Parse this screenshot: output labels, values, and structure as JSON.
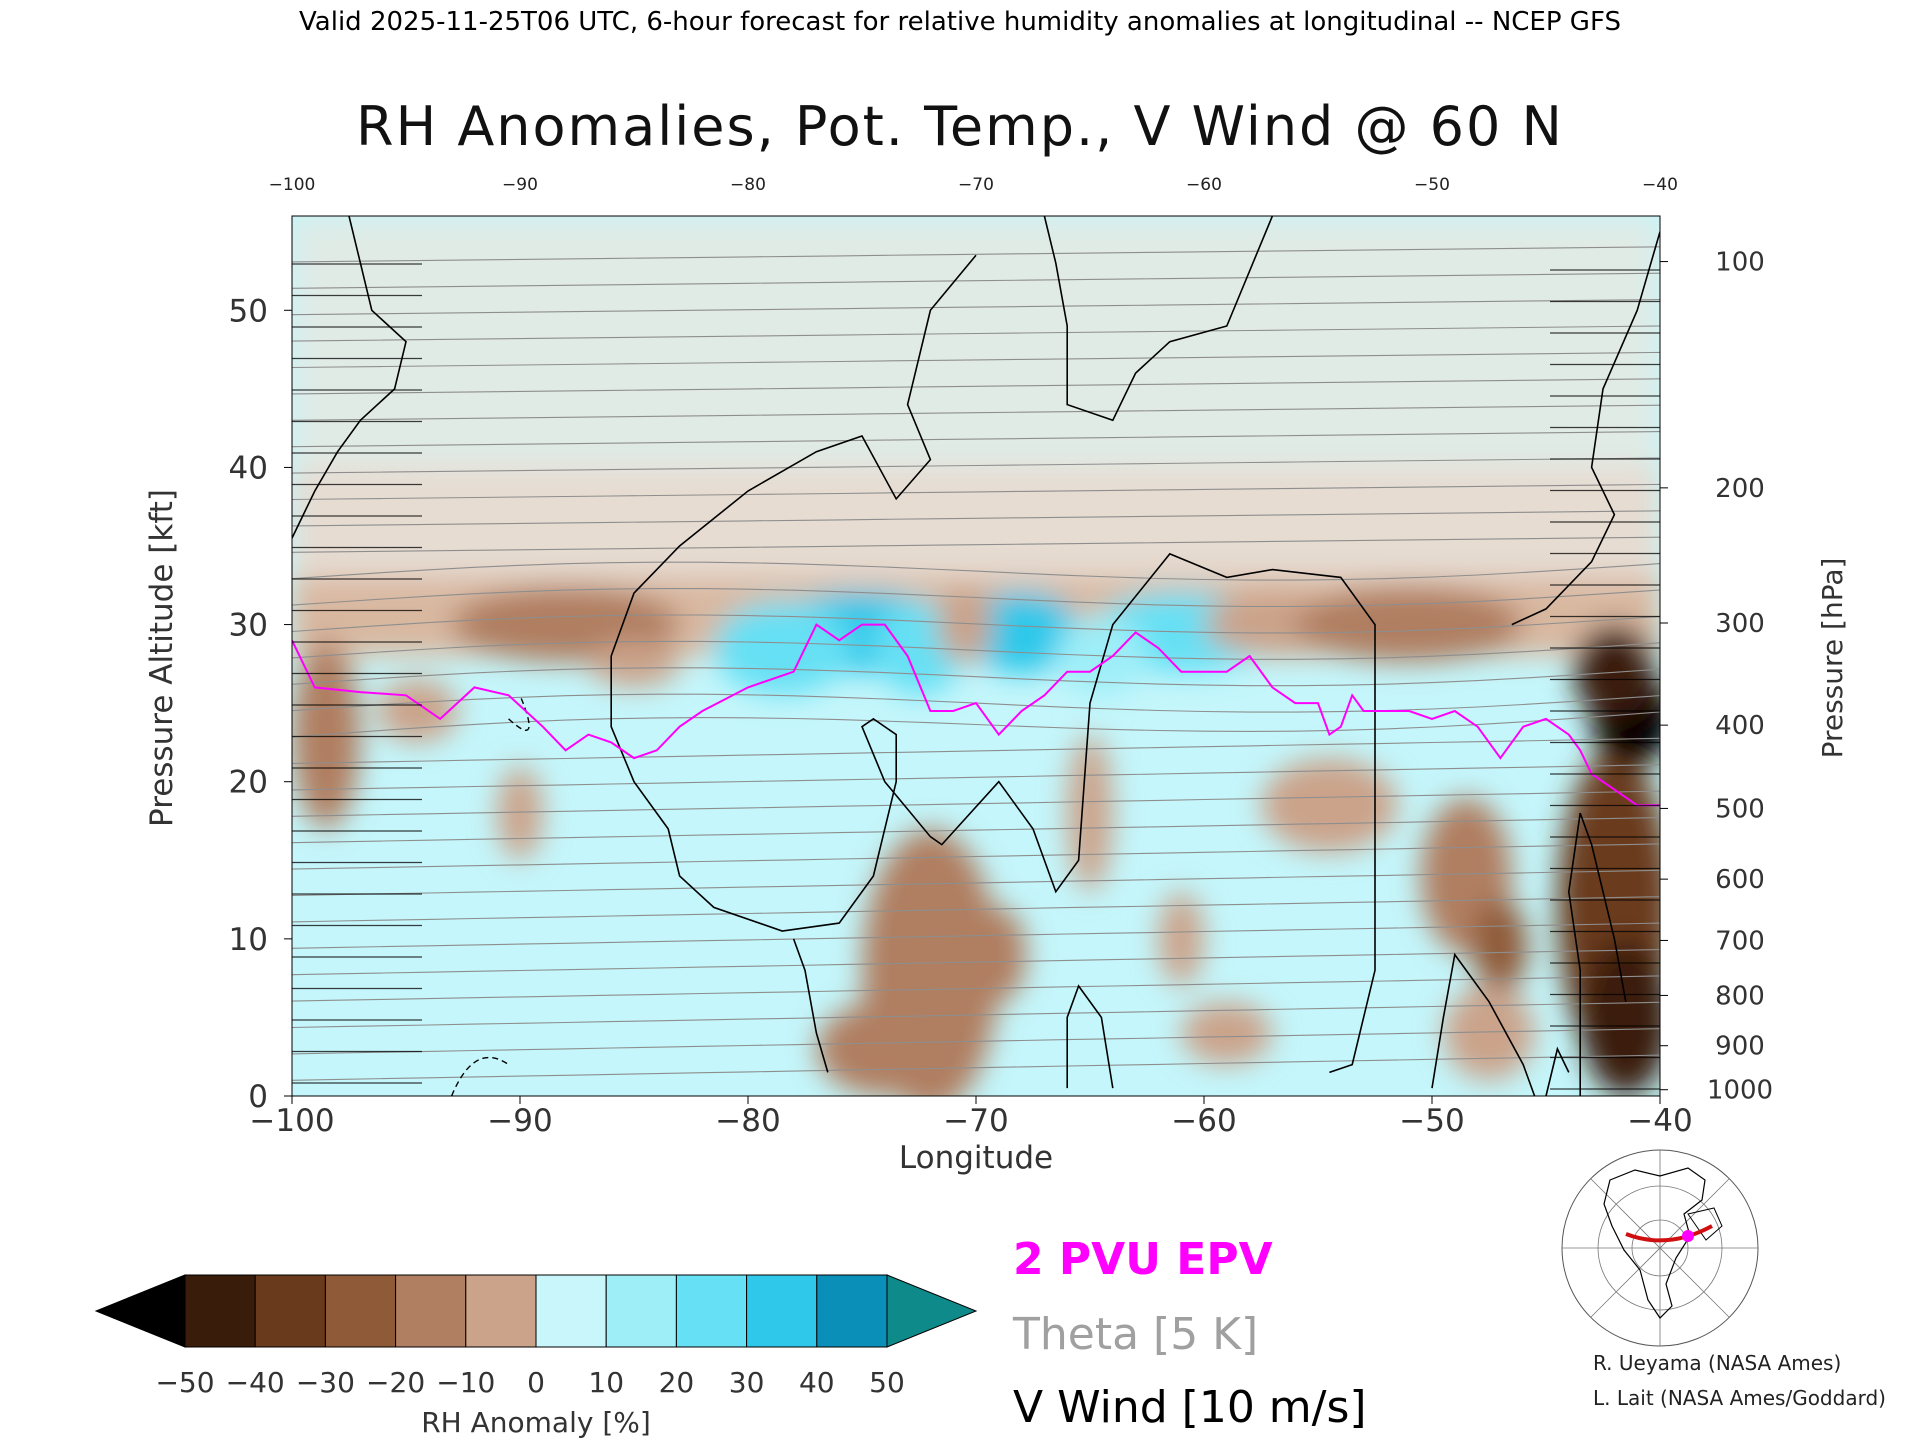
{
  "header": "Valid 2025-11-25T06 UTC, 6-hour forecast for relative humidity anomalies at longitudinal -- NCEP GFS",
  "credits": [
    "R. Ueyama (NASA Ames)",
    "L. Lait (NASA Ames/Goddard)"
  ],
  "chart_data": {
    "type": "heatmap",
    "title": "RH Anomalies, Pot. Temp., V Wind @ 60 N",
    "xlabel": "Longitude",
    "ylabel": "Pressure Altitude [kft]",
    "y2label": "Pressure [hPa]",
    "xlim": [
      -100,
      -40
    ],
    "ylim": [
      0,
      56
    ],
    "xticks": [
      -100,
      -90,
      -80,
      -70,
      -60,
      -50,
      -40
    ],
    "xtick_labels": [
      "−100",
      "−90",
      "−80",
      "−70",
      "−60",
      "−50",
      "−40"
    ],
    "top_xtick_labels": [
      "−100",
      "−90",
      "−80",
      "−70",
      "−60",
      "−50",
      "−40"
    ],
    "yticks": [
      0,
      10,
      20,
      30,
      40,
      50
    ],
    "pressure_ticks": [
      {
        "hPa": 100,
        "kft": 53.1
      },
      {
        "hPa": 200,
        "kft": 38.7
      },
      {
        "hPa": 300,
        "kft": 30.1
      },
      {
        "hPa": 400,
        "kft": 23.6
      },
      {
        "hPa": 500,
        "kft": 18.3
      },
      {
        "hPa": 600,
        "kft": 13.8
      },
      {
        "hPa": 700,
        "kft": 9.9
      },
      {
        "hPa": 800,
        "kft": 6.4
      },
      {
        "hPa": 900,
        "kft": 3.2
      },
      {
        "hPa": 1000,
        "kft": 0.4
      }
    ],
    "colorbar": {
      "label": "RH Anomaly [%]",
      "levels": [
        -50,
        -40,
        -30,
        -20,
        -10,
        0,
        10,
        20,
        30,
        40,
        50
      ],
      "tick_labels": [
        "−50",
        "−40",
        "−30",
        "−20",
        "−10",
        "0",
        "10",
        "20",
        "30",
        "40",
        "50"
      ],
      "colors": [
        "#3a1c0a",
        "#6a3a1c",
        "#8f5a38",
        "#b07e60",
        "#cba38a",
        "#e9d3c6",
        "#c8f6fa",
        "#9eeef8",
        "#66e0f4",
        "#2fc8ea",
        "#0a90b8"
      ],
      "under_color": "#000000",
      "over_color": "#0f8a8a"
    },
    "legend": [
      {
        "text": "2 PVU EPV",
        "color": "#ff00ff"
      },
      {
        "text": "Theta [5 K]",
        "color": "#a0a0a0"
      },
      {
        "text": "V Wind [10 m/s]",
        "color": "#000000"
      }
    ],
    "theta_levels_K": [
      270,
      280,
      290,
      300,
      310,
      320,
      330,
      340,
      350,
      360,
      370,
      380,
      390,
      400,
      410,
      420
    ],
    "epv_2pvu": {
      "lon": [
        -100,
        -99,
        -97,
        -95,
        -93.5,
        -92,
        -90.5,
        -89,
        -88,
        -87,
        -86,
        -85,
        -84,
        -83,
        -82,
        -80,
        -78,
        -77,
        -76,
        -75,
        -74,
        -73,
        -72,
        -71,
        -70,
        -69,
        -68,
        -67,
        -66,
        -65,
        -64,
        -63,
        -62,
        -61,
        -60,
        -59,
        -58,
        -57,
        -56,
        -55,
        -54.5,
        -54,
        -53.5,
        -53,
        -52,
        -51,
        -50,
        -49,
        -48,
        -47,
        -46,
        -45,
        -44,
        -43.5,
        -43,
        -42,
        -41,
        -40
      ],
      "kft": [
        29,
        26,
        25.7,
        25.5,
        24,
        26,
        25.5,
        23.5,
        22,
        23,
        22.5,
        21.5,
        22,
        23.5,
        24.5,
        26,
        27,
        30,
        29,
        30,
        30,
        28,
        24.5,
        24.5,
        25,
        23,
        24.5,
        25.5,
        27,
        27,
        28,
        29.5,
        28.5,
        27,
        27,
        27,
        28,
        26,
        25,
        25,
        23,
        23.5,
        25.5,
        24.5,
        24.5,
        24.5,
        24,
        24.5,
        23.5,
        21.5,
        23.5,
        24,
        23,
        22,
        20.5,
        19.5,
        18.5,
        18.5
      ]
    },
    "v_wind_contours_ms": [
      -10,
      0,
      10
    ],
    "map_inset": "polar stereographic locator map, red arc along 60 N from -100 to -40, magenta marker"
  }
}
